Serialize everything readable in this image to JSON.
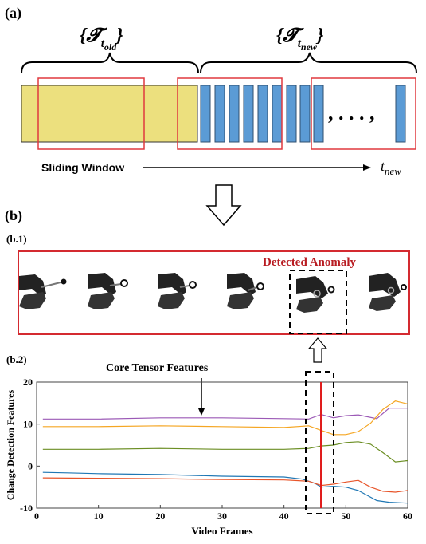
{
  "panel_a": {
    "label": "(a)",
    "old_set_label": "{𝓣",
    "old_set_sub": "t",
    "old_set_subsub": "old",
    "old_set_close": "}",
    "new_set_label": "{𝓣",
    "new_set_sub": "t",
    "new_set_subsub": "new",
    "new_set_close": "}",
    "ellipsis": ", . . . ,",
    "sliding_window_label": "Sliding Window",
    "t_new_label": "t",
    "t_new_sub": "new",
    "colors": {
      "old_block": "#ece07e",
      "new_block": "#5b9bd5",
      "window": "#e0393e"
    }
  },
  "panel_b": {
    "label": "(b)",
    "sub1_label": "(b.1)",
    "detected_anomaly": "Detected Anomaly",
    "sub2_label": "(b.2)",
    "core_tensor_label": "Core Tensor Features",
    "colors": {
      "anomaly_box": "#d42a30",
      "anomaly_text": "#b81c22"
    }
  },
  "chart_data": {
    "type": "line",
    "xlabel": "Video Frames",
    "ylabel": "Change Detection Features",
    "xlim": [
      0,
      60
    ],
    "ylim": [
      -10,
      20
    ],
    "xticks": [
      0,
      10,
      20,
      30,
      40,
      50,
      60
    ],
    "yticks": [
      -10,
      0,
      10,
      20
    ],
    "anomaly_frame": 46,
    "series": [
      {
        "color": "#9b59b6",
        "points": [
          [
            1,
            11.2
          ],
          [
            10,
            11.2
          ],
          [
            20,
            11.5
          ],
          [
            30,
            11.5
          ],
          [
            40,
            11.3
          ],
          [
            44,
            11.2
          ],
          [
            46,
            12.3
          ],
          [
            48,
            11.5
          ],
          [
            50,
            12.0
          ],
          [
            52,
            12.2
          ],
          [
            55,
            11.3
          ],
          [
            57,
            13.8
          ],
          [
            60,
            13.8
          ]
        ]
      },
      {
        "color": "#f5a623",
        "points": [
          [
            1,
            9.4
          ],
          [
            10,
            9.4
          ],
          [
            20,
            9.6
          ],
          [
            30,
            9.4
          ],
          [
            40,
            9.2
          ],
          [
            44,
            9.6
          ],
          [
            46,
            8.5
          ],
          [
            48,
            7.5
          ],
          [
            50,
            7.5
          ],
          [
            52,
            8.2
          ],
          [
            54,
            10.2
          ],
          [
            56,
            13.5
          ],
          [
            58,
            15.5
          ],
          [
            60,
            14.8
          ]
        ]
      },
      {
        "color": "#6b8e23",
        "points": [
          [
            1,
            4.0
          ],
          [
            10,
            4.0
          ],
          [
            20,
            4.2
          ],
          [
            30,
            4.0
          ],
          [
            40,
            4.0
          ],
          [
            44,
            4.2
          ],
          [
            46,
            4.8
          ],
          [
            48,
            5.0
          ],
          [
            50,
            5.6
          ],
          [
            52,
            5.8
          ],
          [
            54,
            5.2
          ],
          [
            56,
            3.2
          ],
          [
            58,
            1.0
          ],
          [
            60,
            1.3
          ]
        ]
      },
      {
        "color": "#1f77b4",
        "points": [
          [
            1,
            -1.5
          ],
          [
            5,
            -1.6
          ],
          [
            10,
            -1.8
          ],
          [
            20,
            -2.0
          ],
          [
            30,
            -2.4
          ],
          [
            40,
            -2.6
          ],
          [
            43,
            -3.1
          ],
          [
            45,
            -4.1
          ],
          [
            46,
            -5.0
          ],
          [
            48,
            -4.8
          ],
          [
            50,
            -5.0
          ],
          [
            52,
            -5.8
          ],
          [
            55,
            -8.2
          ],
          [
            57,
            -8.6
          ],
          [
            60,
            -8.8
          ]
        ]
      },
      {
        "color": "#e8552a",
        "points": [
          [
            1,
            -2.8
          ],
          [
            10,
            -2.9
          ],
          [
            20,
            -3.0
          ],
          [
            30,
            -3.2
          ],
          [
            40,
            -3.3
          ],
          [
            44,
            -3.6
          ],
          [
            46,
            -4.6
          ],
          [
            48,
            -4.3
          ],
          [
            50,
            -3.8
          ],
          [
            52,
            -3.4
          ],
          [
            54,
            -5.0
          ],
          [
            55,
            -5.5
          ],
          [
            56,
            -6.0
          ],
          [
            58,
            -6.2
          ],
          [
            60,
            -5.8
          ]
        ]
      }
    ]
  }
}
